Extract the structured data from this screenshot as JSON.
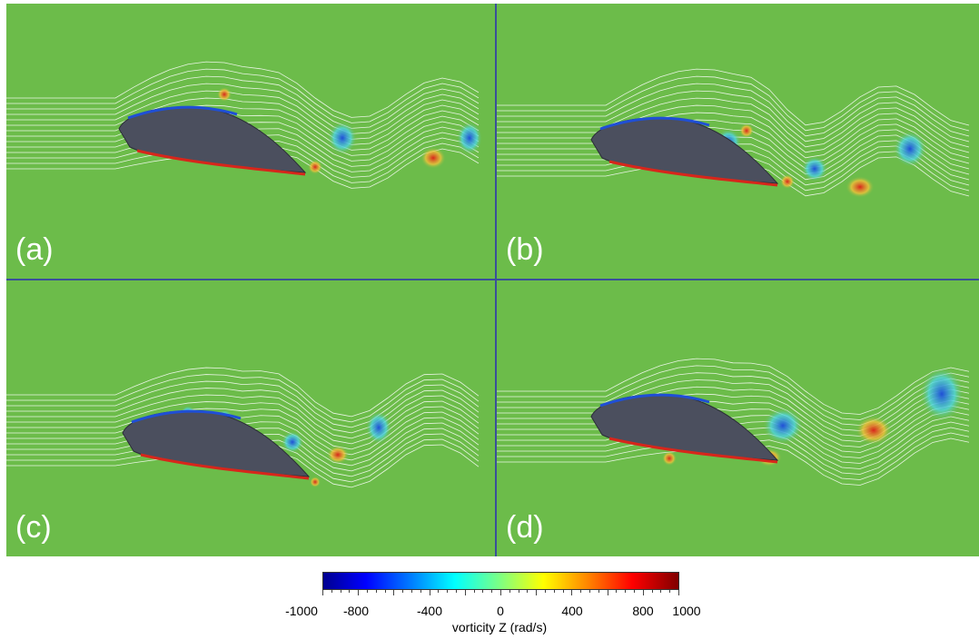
{
  "panels": [
    {
      "label": "(a)"
    },
    {
      "label": "(b)"
    },
    {
      "label": "(c)"
    },
    {
      "label": "(d)"
    }
  ],
  "colorbar": {
    "title": "vorticity Z (rad/s)",
    "min": -1000,
    "max": 1000,
    "tick_labels": [
      "-1000",
      "-800",
      "-400",
      "0",
      "400",
      "800",
      "1000"
    ]
  },
  "colors": {
    "background_field": "#6cbc4a",
    "airfoil": "#4b4f5e",
    "streamline": "#ffffff",
    "negative_vortex": "#1f4fd6",
    "positive_vortex": "#d7261b",
    "panel_border": "#3a4f9a"
  }
}
